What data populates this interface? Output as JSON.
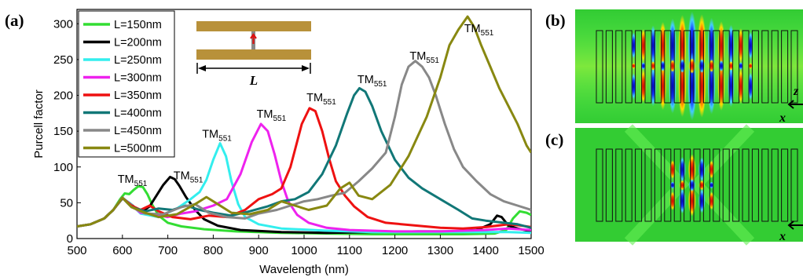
{
  "panels": {
    "a": "(a)",
    "b": "(b)",
    "c": "(c)"
  },
  "inset": {
    "length_label": "L"
  },
  "field_axes": {
    "z": "z",
    "x": "x"
  },
  "chart_data": {
    "type": "line",
    "xlabel": "Wavelength (nm)",
    "ylabel": "Purcell factor",
    "xlim": [
      500,
      1500
    ],
    "ylim": [
      0,
      320
    ],
    "xticks": [
      500,
      600,
      700,
      800,
      900,
      1000,
      1100,
      1200,
      1300,
      1400,
      1500
    ],
    "yticks": [
      0,
      50,
      100,
      150,
      200,
      250,
      300
    ],
    "legend_position": "top-left",
    "grid": false,
    "series": [
      {
        "name": "L=150nm",
        "color": "#33dd33",
        "points": [
          [
            500,
            17
          ],
          [
            530,
            20
          ],
          [
            560,
            28
          ],
          [
            580,
            40
          ],
          [
            595,
            55
          ],
          [
            605,
            63
          ],
          [
            615,
            62
          ],
          [
            625,
            68
          ],
          [
            635,
            73
          ],
          [
            645,
            72
          ],
          [
            655,
            62
          ],
          [
            665,
            48
          ],
          [
            680,
            32
          ],
          [
            700,
            22
          ],
          [
            730,
            17
          ],
          [
            780,
            13
          ],
          [
            850,
            10
          ],
          [
            950,
            8
          ],
          [
            1050,
            7
          ],
          [
            1150,
            6
          ],
          [
            1250,
            6
          ],
          [
            1350,
            6
          ],
          [
            1420,
            7
          ],
          [
            1445,
            12
          ],
          [
            1460,
            28
          ],
          [
            1475,
            38
          ],
          [
            1490,
            36
          ],
          [
            1500,
            33
          ]
        ]
      },
      {
        "name": "L=200nm",
        "color": "#000000",
        "points": [
          [
            500,
            17
          ],
          [
            530,
            20
          ],
          [
            560,
            28
          ],
          [
            580,
            40
          ],
          [
            600,
            56
          ],
          [
            615,
            50
          ],
          [
            630,
            42
          ],
          [
            645,
            38
          ],
          [
            660,
            45
          ],
          [
            675,
            60
          ],
          [
            690,
            75
          ],
          [
            705,
            86
          ],
          [
            715,
            83
          ],
          [
            725,
            74
          ],
          [
            740,
            58
          ],
          [
            760,
            40
          ],
          [
            780,
            27
          ],
          [
            810,
            18
          ],
          [
            860,
            12
          ],
          [
            950,
            9
          ],
          [
            1050,
            8
          ],
          [
            1150,
            9
          ],
          [
            1250,
            10
          ],
          [
            1330,
            10
          ],
          [
            1380,
            12
          ],
          [
            1410,
            20
          ],
          [
            1425,
            32
          ],
          [
            1435,
            30
          ],
          [
            1450,
            18
          ],
          [
            1470,
            14
          ],
          [
            1500,
            10
          ]
        ]
      },
      {
        "name": "L=250nm",
        "color": "#33eeee",
        "points": [
          [
            500,
            17
          ],
          [
            530,
            20
          ],
          [
            560,
            28
          ],
          [
            580,
            40
          ],
          [
            600,
            57
          ],
          [
            615,
            50
          ],
          [
            640,
            35
          ],
          [
            680,
            30
          ],
          [
            720,
            42
          ],
          [
            750,
            55
          ],
          [
            770,
            65
          ],
          [
            785,
            82
          ],
          [
            800,
            110
          ],
          [
            815,
            133
          ],
          [
            828,
            115
          ],
          [
            840,
            80
          ],
          [
            855,
            48
          ],
          [
            870,
            30
          ],
          [
            900,
            20
          ],
          [
            950,
            14
          ],
          [
            1050,
            11
          ],
          [
            1150,
            9
          ],
          [
            1250,
            9
          ],
          [
            1350,
            9
          ],
          [
            1450,
            9
          ],
          [
            1500,
            8
          ]
        ]
      },
      {
        "name": "L=300nm",
        "color": "#ee22ee",
        "points": [
          [
            500,
            17
          ],
          [
            530,
            20
          ],
          [
            560,
            28
          ],
          [
            580,
            40
          ],
          [
            600,
            57
          ],
          [
            620,
            46
          ],
          [
            640,
            36
          ],
          [
            670,
            34
          ],
          [
            700,
            30
          ],
          [
            730,
            35
          ],
          [
            760,
            38
          ],
          [
            800,
            46
          ],
          [
            830,
            55
          ],
          [
            860,
            90
          ],
          [
            885,
            135
          ],
          [
            905,
            160
          ],
          [
            920,
            150
          ],
          [
            935,
            118
          ],
          [
            950,
            80
          ],
          [
            965,
            52
          ],
          [
            985,
            33
          ],
          [
            1010,
            22
          ],
          [
            1050,
            15
          ],
          [
            1100,
            12
          ],
          [
            1200,
            10
          ],
          [
            1300,
            10
          ],
          [
            1400,
            12
          ],
          [
            1450,
            14
          ],
          [
            1500,
            12
          ]
        ]
      },
      {
        "name": "L=350nm",
        "color": "#ee1111",
        "points": [
          [
            500,
            17
          ],
          [
            530,
            20
          ],
          [
            560,
            28
          ],
          [
            580,
            40
          ],
          [
            600,
            57
          ],
          [
            620,
            46
          ],
          [
            640,
            40
          ],
          [
            660,
            46
          ],
          [
            680,
            38
          ],
          [
            710,
            30
          ],
          [
            750,
            27
          ],
          [
            790,
            32
          ],
          [
            830,
            30
          ],
          [
            870,
            40
          ],
          [
            900,
            55
          ],
          [
            930,
            62
          ],
          [
            950,
            70
          ],
          [
            970,
            100
          ],
          [
            995,
            160
          ],
          [
            1012,
            182
          ],
          [
            1025,
            178
          ],
          [
            1040,
            150
          ],
          [
            1055,
            112
          ],
          [
            1070,
            80
          ],
          [
            1090,
            60
          ],
          [
            1110,
            45
          ],
          [
            1140,
            30
          ],
          [
            1180,
            22
          ],
          [
            1250,
            18
          ],
          [
            1300,
            15
          ],
          [
            1350,
            14
          ],
          [
            1400,
            16
          ],
          [
            1450,
            20
          ],
          [
            1480,
            18
          ],
          [
            1500,
            16
          ]
        ]
      },
      {
        "name": "L=400nm",
        "color": "#117777",
        "points": [
          [
            500,
            17
          ],
          [
            530,
            20
          ],
          [
            560,
            28
          ],
          [
            580,
            40
          ],
          [
            600,
            57
          ],
          [
            620,
            44
          ],
          [
            650,
            38
          ],
          [
            680,
            42
          ],
          [
            710,
            40
          ],
          [
            740,
            46
          ],
          [
            770,
            40
          ],
          [
            800,
            36
          ],
          [
            840,
            32
          ],
          [
            880,
            38
          ],
          [
            920,
            45
          ],
          [
            950,
            52
          ],
          [
            980,
            55
          ],
          [
            1010,
            65
          ],
          [
            1040,
            90
          ],
          [
            1070,
            130
          ],
          [
            1095,
            175
          ],
          [
            1110,
            200
          ],
          [
            1122,
            210
          ],
          [
            1135,
            205
          ],
          [
            1150,
            185
          ],
          [
            1170,
            150
          ],
          [
            1200,
            110
          ],
          [
            1230,
            85
          ],
          [
            1260,
            70
          ],
          [
            1300,
            55
          ],
          [
            1340,
            40
          ],
          [
            1370,
            28
          ],
          [
            1400,
            25
          ],
          [
            1440,
            22
          ],
          [
            1470,
            20
          ],
          [
            1500,
            15
          ]
        ]
      },
      {
        "name": "L=450nm",
        "color": "#888888",
        "points": [
          [
            500,
            17
          ],
          [
            530,
            20
          ],
          [
            560,
            28
          ],
          [
            580,
            40
          ],
          [
            600,
            57
          ],
          [
            620,
            44
          ],
          [
            650,
            35
          ],
          [
            690,
            34
          ],
          [
            730,
            44
          ],
          [
            760,
            48
          ],
          [
            790,
            36
          ],
          [
            830,
            30
          ],
          [
            870,
            28
          ],
          [
            900,
            35
          ],
          [
            940,
            40
          ],
          [
            970,
            46
          ],
          [
            1000,
            52
          ],
          [
            1030,
            55
          ],
          [
            1060,
            60
          ],
          [
            1090,
            64
          ],
          [
            1120,
            80
          ],
          [
            1150,
            98
          ],
          [
            1180,
            120
          ],
          [
            1200,
            170
          ],
          [
            1215,
            215
          ],
          [
            1230,
            240
          ],
          [
            1245,
            248
          ],
          [
            1260,
            240
          ],
          [
            1275,
            225
          ],
          [
            1290,
            200
          ],
          [
            1310,
            160
          ],
          [
            1330,
            125
          ],
          [
            1350,
            100
          ],
          [
            1380,
            80
          ],
          [
            1410,
            62
          ],
          [
            1440,
            52
          ],
          [
            1470,
            46
          ],
          [
            1500,
            40
          ]
        ]
      },
      {
        "name": "L=500nm",
        "color": "#888811",
        "points": [
          [
            500,
            17
          ],
          [
            530,
            20
          ],
          [
            560,
            28
          ],
          [
            580,
            40
          ],
          [
            600,
            57
          ],
          [
            620,
            44
          ],
          [
            650,
            36
          ],
          [
            680,
            30
          ],
          [
            720,
            34
          ],
          [
            760,
            48
          ],
          [
            785,
            58
          ],
          [
            810,
            48
          ],
          [
            840,
            36
          ],
          [
            880,
            34
          ],
          [
            920,
            40
          ],
          [
            950,
            52
          ],
          [
            980,
            46
          ],
          [
            1010,
            40
          ],
          [
            1050,
            46
          ],
          [
            1080,
            70
          ],
          [
            1100,
            78
          ],
          [
            1120,
            60
          ],
          [
            1150,
            55
          ],
          [
            1190,
            75
          ],
          [
            1230,
            115
          ],
          [
            1270,
            170
          ],
          [
            1300,
            225
          ],
          [
            1320,
            270
          ],
          [
            1340,
            292
          ],
          [
            1360,
            310
          ],
          [
            1375,
            295
          ],
          [
            1390,
            270
          ],
          [
            1410,
            240
          ],
          [
            1430,
            210
          ],
          [
            1450,
            185
          ],
          [
            1470,
            160
          ],
          [
            1490,
            130
          ],
          [
            1500,
            120
          ]
        ]
      }
    ],
    "peak_labels": [
      {
        "base": "TM",
        "sub": "551",
        "x": 622,
        "y": 78
      },
      {
        "base": "TM",
        "sub": "551",
        "x": 745,
        "y": 83
      },
      {
        "base": "TM",
        "sub": "551",
        "x": 808,
        "y": 141
      },
      {
        "base": "TM",
        "sub": "551",
        "x": 928,
        "y": 169
      },
      {
        "base": "TM",
        "sub": "551",
        "x": 1038,
        "y": 192
      },
      {
        "base": "TM",
        "sub": "551",
        "x": 1150,
        "y": 217
      },
      {
        "base": "TM",
        "sub": "551",
        "x": 1265,
        "y": 250
      },
      {
        "base": "TM",
        "sub": "551",
        "x": 1385,
        "y": 288
      }
    ]
  }
}
